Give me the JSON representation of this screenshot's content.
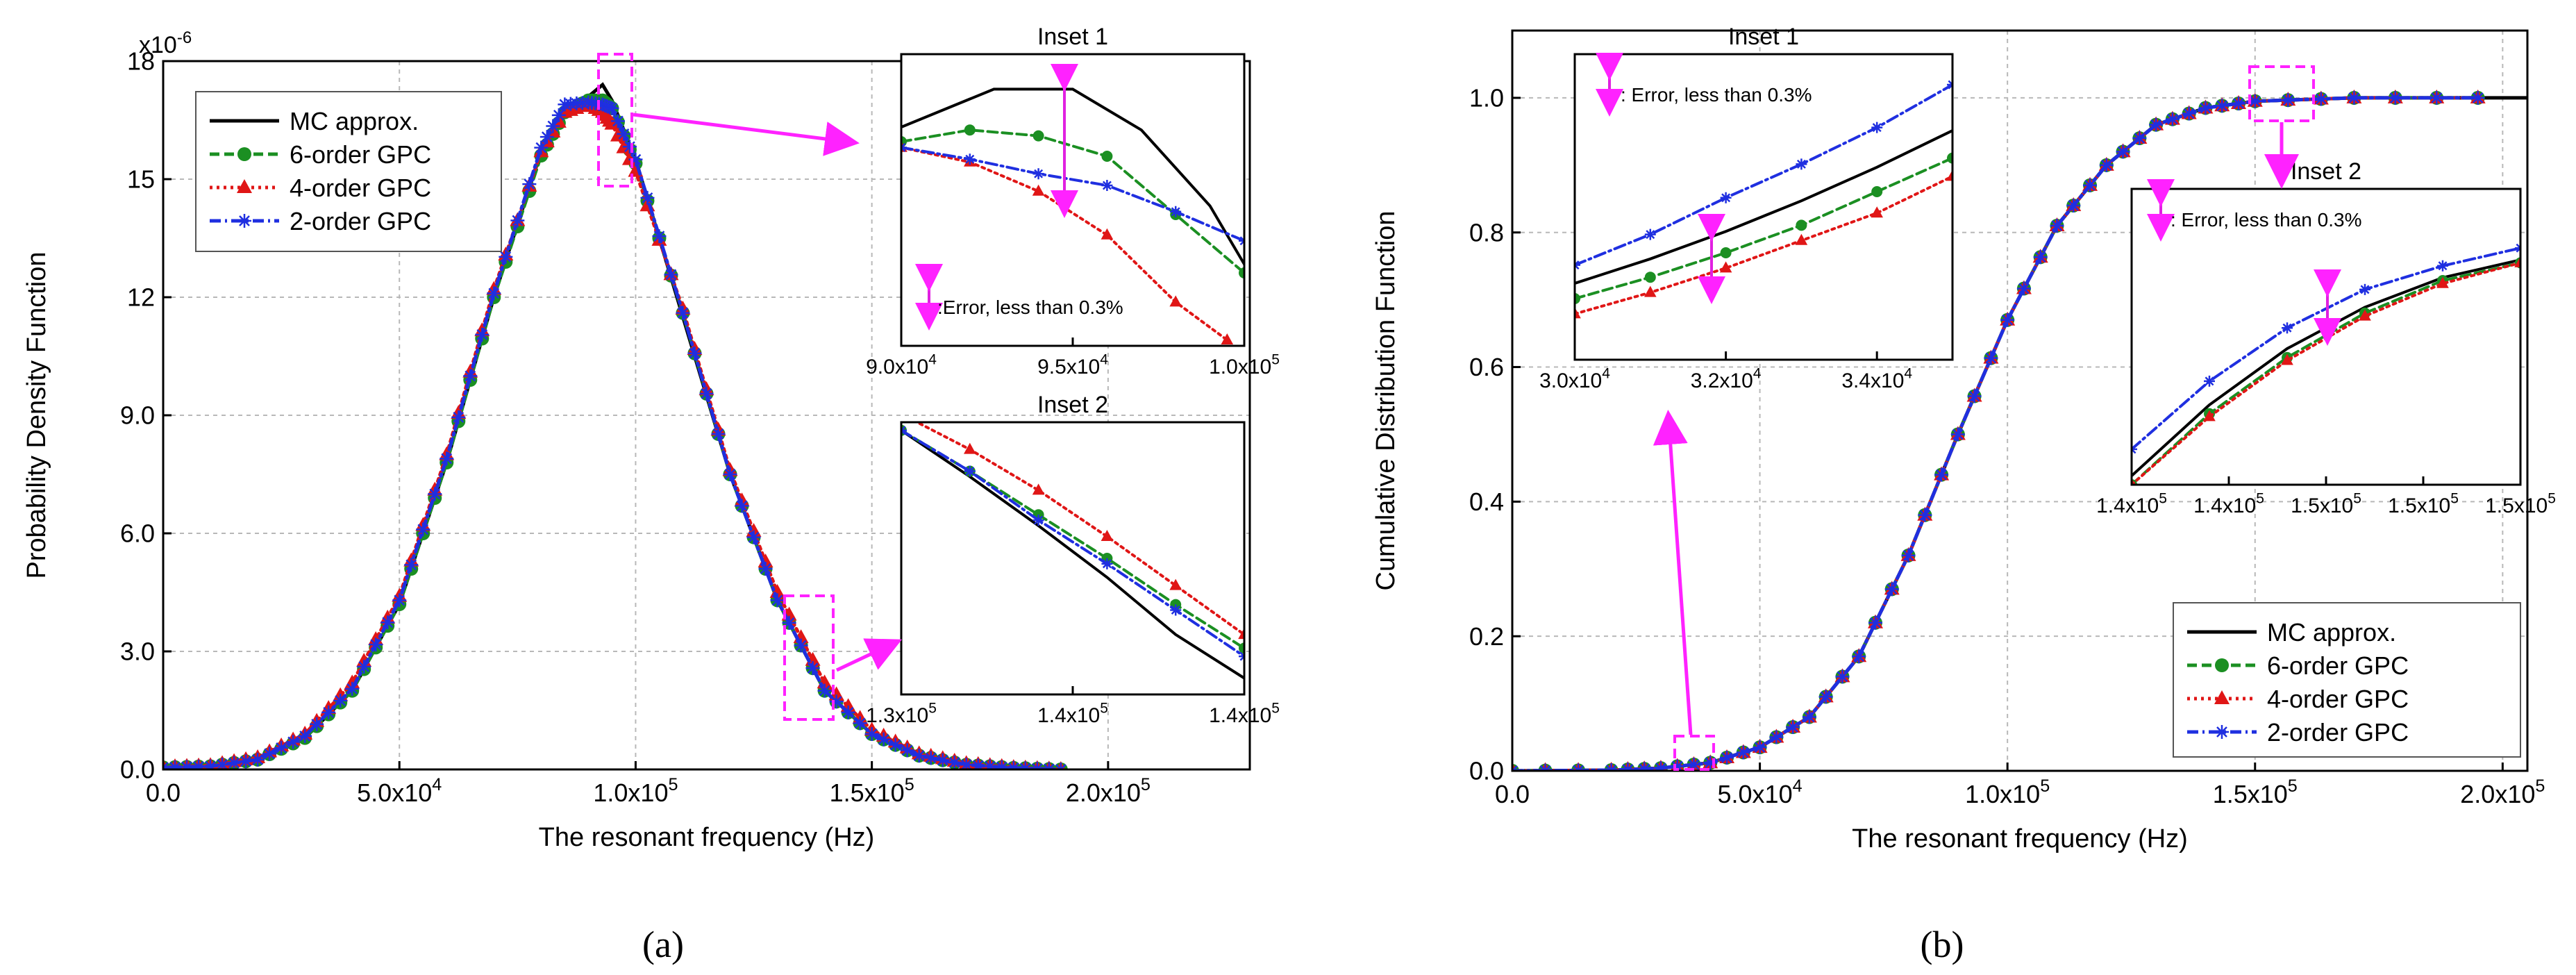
{
  "figure_labels": {
    "a": "(a)",
    "b": "(b)"
  },
  "chart_data": [
    {
      "id": "a-main",
      "type": "line",
      "xlabel": "The resonant frequency (Hz)",
      "ylabel": "Probability Density Function",
      "y_multiplier": "x10",
      "y_exponent": "-6",
      "xlim": [
        0,
        230000
      ],
      "ylim": [
        0,
        18
      ],
      "x_ticks": [
        {
          "v": 0,
          "label": "0.0"
        },
        {
          "v": 50000,
          "label": "5.0x10",
          "exp": "4"
        },
        {
          "v": 100000,
          "label": "1.0x10",
          "exp": "5"
        },
        {
          "v": 150000,
          "label": "1.5x10",
          "exp": "5"
        },
        {
          "v": 200000,
          "label": "2.0x10",
          "exp": "5"
        }
      ],
      "y_ticks": [
        {
          "v": 0,
          "label": "0.0"
        },
        {
          "v": 3,
          "label": "3.0"
        },
        {
          "v": 6,
          "label": "6.0"
        },
        {
          "v": 9,
          "label": "9.0"
        },
        {
          "v": 12,
          "label": "12"
        },
        {
          "v": 15,
          "label": "15"
        },
        {
          "v": 18,
          "label": "18"
        }
      ],
      "series": [
        {
          "name": "MC approx.",
          "color": "#000000",
          "dash": "solid",
          "marker": "none",
          "x": [
            0,
            10000,
            20000,
            30000,
            40000,
            50000,
            60000,
            70000,
            80000,
            85000,
            90000,
            93000,
            95000,
            100000,
            110000,
            120000,
            130000,
            140000,
            150000,
            160000,
            170000,
            180000,
            190000
          ],
          "y": [
            0.05,
            0.08,
            0.25,
            0.8,
            2.0,
            4.2,
            7.8,
            12.0,
            15.7,
            16.8,
            17.1,
            17.4,
            17.0,
            15.5,
            11.5,
            7.5,
            4.3,
            2.0,
            0.9,
            0.35,
            0.12,
            0.04,
            0.0
          ]
        },
        {
          "name": "6-order GPC",
          "color": "#1b8f22",
          "dash": "dashed",
          "marker": "circle",
          "x": [
            0,
            10000,
            20000,
            30000,
            40000,
            50000,
            60000,
            70000,
            80000,
            85000,
            90000,
            93000,
            95000,
            100000,
            110000,
            120000,
            130000,
            140000,
            150000,
            160000,
            170000,
            180000,
            190000
          ],
          "y": [
            0.05,
            0.08,
            0.25,
            0.8,
            2.0,
            4.2,
            7.8,
            12.0,
            15.6,
            16.7,
            17.0,
            17.0,
            16.8,
            15.4,
            11.6,
            7.5,
            4.3,
            2.0,
            0.9,
            0.35,
            0.12,
            0.04,
            0.0
          ]
        },
        {
          "name": "4-order GPC",
          "color": "#e01616",
          "dash": "dotted",
          "marker": "triangle",
          "x": [
            0,
            10000,
            20000,
            30000,
            40000,
            50000,
            60000,
            70000,
            80000,
            85000,
            90000,
            93000,
            95000,
            100000,
            110000,
            120000,
            130000,
            140000,
            150000,
            160000,
            170000,
            180000,
            190000
          ],
          "y": [
            0.06,
            0.1,
            0.3,
            0.9,
            2.2,
            4.4,
            8.0,
            12.2,
            15.7,
            16.7,
            16.9,
            16.7,
            16.4,
            15.2,
            11.7,
            7.6,
            4.5,
            2.2,
            1.0,
            0.4,
            0.15,
            0.05,
            0.0
          ]
        },
        {
          "name": "2-order GPC",
          "color": "#1f2fe0",
          "dash": "dashdot",
          "marker": "star",
          "x": [
            0,
            10000,
            20000,
            30000,
            40000,
            50000,
            60000,
            70000,
            80000,
            85000,
            90000,
            93000,
            95000,
            100000,
            110000,
            120000,
            130000,
            140000,
            150000,
            160000,
            170000,
            180000,
            190000
          ],
          "y": [
            0.05,
            0.08,
            0.25,
            0.85,
            2.05,
            4.3,
            7.9,
            12.1,
            15.8,
            16.9,
            16.95,
            16.9,
            16.8,
            15.5,
            11.6,
            7.5,
            4.3,
            2.0,
            0.9,
            0.35,
            0.12,
            0.04,
            0.0
          ]
        }
      ],
      "annotations": []
    },
    {
      "id": "a-inset1",
      "type": "line",
      "title": "Inset 1",
      "xlim": [
        90000,
        100000
      ],
      "ylim": [
        0,
        1
      ],
      "x_ticks": [
        {
          "v": 90000,
          "label": "9.0x10",
          "exp": "4"
        },
        {
          "v": 95000,
          "label": "9.5x10",
          "exp": "4"
        },
        {
          "v": 100000,
          "label": "1.0x10",
          "exp": "5"
        }
      ],
      "series": [
        {
          "name": "MC approx.",
          "color": "#000000",
          "dash": "solid",
          "marker": "none",
          "x": [
            90000,
            92700,
            95000,
            97000,
            99000,
            100000
          ],
          "y": [
            0.75,
            0.88,
            0.88,
            0.74,
            0.48,
            0.28
          ]
        },
        {
          "name": "6-order GPC",
          "color": "#1b8f22",
          "dash": "dashed",
          "marker": "circle",
          "x": [
            90000,
            92000,
            94000,
            96000,
            98000,
            100000
          ],
          "y": [
            0.7,
            0.74,
            0.72,
            0.65,
            0.45,
            0.25
          ]
        },
        {
          "name": "4-order GPC",
          "color": "#e01616",
          "dash": "dotted",
          "marker": "triangle",
          "x": [
            90000,
            92000,
            94000,
            96000,
            98000,
            99500
          ],
          "y": [
            0.68,
            0.63,
            0.53,
            0.38,
            0.15,
            0.02
          ]
        },
        {
          "name": "2-order GPC",
          "color": "#1f2fe0",
          "dash": "dashdot",
          "marker": "star",
          "x": [
            90000,
            92000,
            94000,
            96000,
            98000,
            100000
          ],
          "y": [
            0.68,
            0.64,
            0.59,
            0.55,
            0.46,
            0.36
          ]
        }
      ],
      "annotations": [
        "Error, less than 0.3%"
      ]
    },
    {
      "id": "a-inset2",
      "type": "line",
      "title": "Inset 2",
      "xlim": [
        130000,
        140000
      ],
      "ylim": [
        0,
        1
      ],
      "x_ticks": [
        {
          "v": 130000,
          "label": "1.3x10",
          "exp": "5"
        },
        {
          "v": 135000,
          "label": "1.4x10",
          "exp": "5"
        },
        {
          "v": 140000,
          "label": "1.4x10",
          "exp": "5"
        }
      ],
      "series": [
        {
          "name": "MC approx.",
          "color": "#000000",
          "dash": "solid",
          "marker": "none",
          "x": [
            130000,
            132000,
            134000,
            136000,
            138000,
            140000
          ],
          "y": [
            0.97,
            0.8,
            0.62,
            0.43,
            0.22,
            0.06
          ]
        },
        {
          "name": "6-order GPC",
          "color": "#1b8f22",
          "dash": "dashed",
          "marker": "circle",
          "x": [
            130000,
            132000,
            134000,
            136000,
            138000,
            140000
          ],
          "y": [
            0.97,
            0.82,
            0.66,
            0.5,
            0.33,
            0.17
          ]
        },
        {
          "name": "4-order GPC",
          "color": "#e01616",
          "dash": "dotted",
          "marker": "triangle",
          "x": [
            130000,
            132000,
            134000,
            136000,
            138000,
            140000
          ],
          "y": [
            1.03,
            0.9,
            0.75,
            0.58,
            0.4,
            0.22
          ]
        },
        {
          "name": "2-order GPC",
          "color": "#1f2fe0",
          "dash": "dashdot",
          "marker": "star",
          "x": [
            130000,
            132000,
            134000,
            136000,
            138000,
            140000
          ],
          "y": [
            0.97,
            0.82,
            0.64,
            0.48,
            0.31,
            0.14
          ]
        }
      ],
      "annotations": []
    },
    {
      "id": "b-main",
      "type": "line",
      "xlabel": "The resonant frequency (Hz)",
      "ylabel": "Cumulative Distribution Function",
      "xlim": [
        0,
        205000
      ],
      "ylim": [
        0,
        1.1
      ],
      "x_ticks": [
        {
          "v": 0,
          "label": "0.0"
        },
        {
          "v": 50000,
          "label": "5.0x10",
          "exp": "4"
        },
        {
          "v": 100000,
          "label": "1.0x10",
          "exp": "5"
        },
        {
          "v": 150000,
          "label": "1.5x10",
          "exp": "5"
        },
        {
          "v": 200000,
          "label": "2.0x10",
          "exp": "5"
        }
      ],
      "y_ticks": [
        {
          "v": 0,
          "label": "0.0"
        },
        {
          "v": 0.2,
          "label": "0.2"
        },
        {
          "v": 0.4,
          "label": "0.4"
        },
        {
          "v": 0.6,
          "label": "0.6"
        },
        {
          "v": 0.8,
          "label": "0.8"
        },
        {
          "v": 1.0,
          "label": "1.0"
        }
      ],
      "series": [
        {
          "name": "MC approx.",
          "color": "#000000",
          "dash": "solid",
          "marker": "none",
          "x": [
            0,
            20000,
            30000,
            40000,
            50000,
            60000,
            70000,
            80000,
            90000,
            100000,
            110000,
            120000,
            130000,
            140000,
            150000,
            170000,
            205000
          ],
          "y": [
            0.0,
            0.001,
            0.004,
            0.012,
            0.035,
            0.08,
            0.17,
            0.32,
            0.5,
            0.67,
            0.81,
            0.9,
            0.96,
            0.985,
            0.995,
            1.0,
            1.0
          ]
        },
        {
          "name": "6-order GPC",
          "color": "#1b8f22",
          "dash": "dashed",
          "marker": "circle",
          "x": [
            0,
            20000,
            30000,
            40000,
            50000,
            60000,
            70000,
            80000,
            90000,
            100000,
            110000,
            120000,
            130000,
            140000,
            150000,
            170000,
            195000
          ],
          "y": [
            0.0,
            0.001,
            0.004,
            0.012,
            0.035,
            0.08,
            0.17,
            0.32,
            0.5,
            0.67,
            0.81,
            0.9,
            0.96,
            0.985,
            0.995,
            1.0,
            1.0
          ]
        },
        {
          "name": "4-order GPC",
          "color": "#e01616",
          "dash": "dotted",
          "marker": "triangle",
          "x": [
            0,
            20000,
            30000,
            40000,
            50000,
            60000,
            70000,
            80000,
            90000,
            100000,
            110000,
            120000,
            130000,
            140000,
            150000,
            170000,
            195000
          ],
          "y": [
            0.0,
            0.001,
            0.004,
            0.012,
            0.035,
            0.08,
            0.17,
            0.32,
            0.5,
            0.67,
            0.81,
            0.9,
            0.96,
            0.985,
            0.995,
            1.0,
            1.0
          ]
        },
        {
          "name": "2-order GPC",
          "color": "#1f2fe0",
          "dash": "dashdot",
          "marker": "star",
          "x": [
            0,
            20000,
            30000,
            40000,
            50000,
            60000,
            70000,
            80000,
            90000,
            100000,
            110000,
            120000,
            130000,
            140000,
            150000,
            170000,
            195000
          ],
          "y": [
            0.0,
            0.001,
            0.004,
            0.012,
            0.035,
            0.08,
            0.17,
            0.32,
            0.5,
            0.67,
            0.81,
            0.9,
            0.96,
            0.985,
            0.995,
            1.0,
            1.0
          ]
        }
      ],
      "annotations": []
    },
    {
      "id": "b-inset1",
      "type": "line",
      "title": "Inset 1",
      "xlim": [
        30000,
        35000
      ],
      "ylim": [
        0,
        1
      ],
      "x_ticks": [
        {
          "v": 30000,
          "label": "3.0x10",
          "exp": "4"
        },
        {
          "v": 32000,
          "label": "3.2x10",
          "exp": "4"
        },
        {
          "v": 34000,
          "label": "3.4x10",
          "exp": "4"
        }
      ],
      "series": [
        {
          "name": "MC approx.",
          "color": "#000000",
          "dash": "solid",
          "marker": "none",
          "x": [
            30000,
            31000,
            32000,
            33000,
            34000,
            35000
          ],
          "y": [
            0.25,
            0.33,
            0.42,
            0.52,
            0.63,
            0.75
          ]
        },
        {
          "name": "6-order GPC",
          "color": "#1b8f22",
          "dash": "dashed",
          "marker": "circle",
          "x": [
            30000,
            31000,
            32000,
            33000,
            34000,
            35000
          ],
          "y": [
            0.2,
            0.27,
            0.35,
            0.44,
            0.55,
            0.66
          ]
        },
        {
          "name": "4-order GPC",
          "color": "#e01616",
          "dash": "dotted",
          "marker": "triangle",
          "x": [
            30000,
            31000,
            32000,
            33000,
            34000,
            35000
          ],
          "y": [
            0.15,
            0.22,
            0.3,
            0.39,
            0.48,
            0.6
          ]
        },
        {
          "name": "2-order GPC",
          "color": "#1f2fe0",
          "dash": "dashdot",
          "marker": "star",
          "x": [
            30000,
            31000,
            32000,
            33000,
            34000,
            35000
          ],
          "y": [
            0.31,
            0.41,
            0.53,
            0.64,
            0.76,
            0.9
          ]
        }
      ],
      "annotations": [
        "Error, less than 0.3%"
      ]
    },
    {
      "id": "b-inset2",
      "type": "line",
      "title": "Inset 2",
      "xlim": [
        140000,
        150000
      ],
      "ylim": [
        0,
        1
      ],
      "x_ticks": [
        {
          "v": 140000,
          "label": "1.4x10",
          "exp": "5"
        },
        {
          "v": 142500,
          "label": "1.4x10",
          "exp": "5"
        },
        {
          "v": 145000,
          "label": "1.5x10",
          "exp": "5"
        },
        {
          "v": 147500,
          "label": "1.5x10",
          "exp": "5"
        },
        {
          "v": 150000,
          "label": "1.5x10",
          "exp": "5"
        }
      ],
      "series": [
        {
          "name": "MC approx.",
          "color": "#000000",
          "dash": "solid",
          "marker": "none",
          "x": [
            140000,
            142000,
            144000,
            146000,
            148000,
            150000
          ],
          "y": [
            0.03,
            0.27,
            0.46,
            0.6,
            0.7,
            0.76
          ]
        },
        {
          "name": "6-order GPC",
          "color": "#1b8f22",
          "dash": "dashed",
          "marker": "circle",
          "x": [
            140000,
            142000,
            144000,
            146000,
            148000,
            150000
          ],
          "y": [
            0.0,
            0.24,
            0.43,
            0.58,
            0.69,
            0.75
          ]
        },
        {
          "name": "4-order GPC",
          "color": "#e01616",
          "dash": "dotted",
          "marker": "triangle",
          "x": [
            140000,
            142000,
            144000,
            146000,
            148000,
            150000
          ],
          "y": [
            0.0,
            0.23,
            0.42,
            0.57,
            0.68,
            0.75
          ]
        },
        {
          "name": "2-order GPC",
          "color": "#1f2fe0",
          "dash": "dashdot",
          "marker": "star",
          "x": [
            140000,
            142000,
            144000,
            146000,
            148000,
            150000
          ],
          "y": [
            0.12,
            0.35,
            0.53,
            0.66,
            0.74,
            0.8
          ]
        }
      ],
      "annotations": [
        "Error, less than 0.3%"
      ]
    }
  ]
}
